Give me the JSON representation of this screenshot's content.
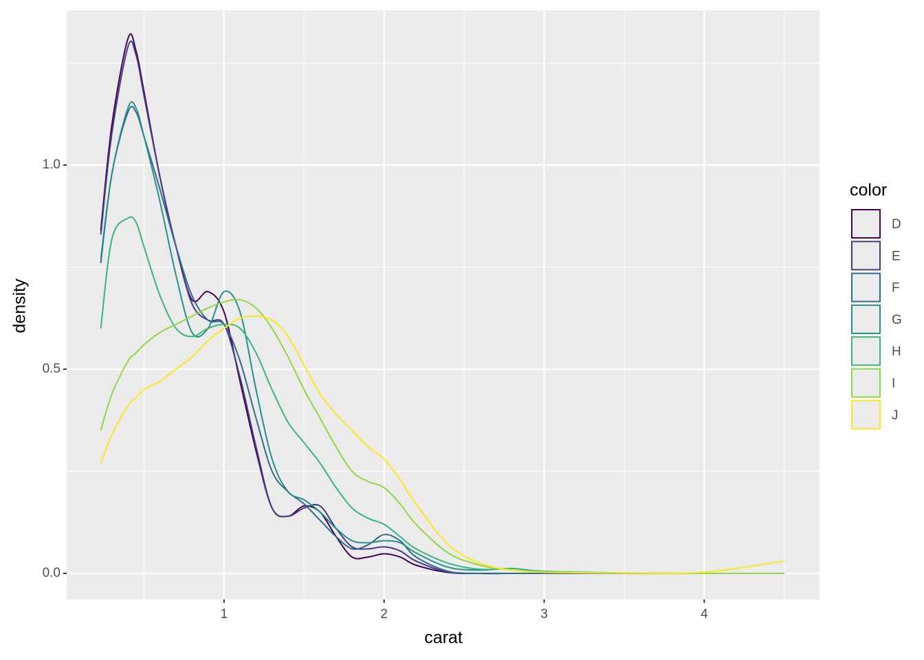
{
  "chart_data": {
    "type": "density",
    "x_label": "carat",
    "y_label": "density",
    "legend_title": "color",
    "xlim": [
      0.017,
      4.72
    ],
    "ylim": [
      -0.064,
      1.379
    ],
    "xticks": [
      1,
      2,
      3,
      4
    ],
    "yticks": [
      {
        "value": 0,
        "label": "0.0"
      },
      0.5,
      {
        "value": 1,
        "label": "1.0"
      }
    ],
    "xminor": [
      0.5,
      1.5,
      2.5,
      3.5,
      4.5
    ],
    "yminor": [
      0.25,
      0.75,
      1.25
    ],
    "grid": true,
    "legend": "right",
    "x": [
      0.23,
      0.3,
      0.4,
      0.45,
      0.5,
      0.6,
      0.7,
      0.8,
      0.9,
      1.0,
      1.1,
      1.2,
      1.3,
      1.4,
      1.5,
      1.6,
      1.7,
      1.8,
      1.9,
      2.0,
      2.1,
      2.2,
      2.4,
      2.6,
      2.8,
      3.0,
      3.5,
      4.0,
      4.5
    ],
    "series": [
      {
        "name": "D",
        "color": "#440154",
        "values": [
          0.84,
          1.1,
          1.31,
          1.28,
          1.18,
          0.97,
          0.8,
          0.67,
          0.69,
          0.64,
          0.47,
          0.3,
          0.16,
          0.14,
          0.165,
          0.15,
          0.09,
          0.04,
          0.04,
          0.048,
          0.04,
          0.02,
          0.002,
          0,
          0,
          0,
          0,
          0,
          0
        ]
      },
      {
        "name": "E",
        "color": "#443A83",
        "values": [
          0.83,
          1.08,
          1.29,
          1.27,
          1.17,
          0.97,
          0.8,
          0.66,
          0.62,
          0.61,
          0.48,
          0.31,
          0.16,
          0.14,
          0.16,
          0.165,
          0.11,
          0.065,
          0.06,
          0.065,
          0.055,
          0.03,
          0.003,
          0,
          0,
          0,
          0,
          0,
          0
        ]
      },
      {
        "name": "F",
        "color": "#31688E",
        "values": [
          0.76,
          0.98,
          1.13,
          1.13,
          1.07,
          0.94,
          0.8,
          0.68,
          0.62,
          0.61,
          0.52,
          0.38,
          0.25,
          0.2,
          0.17,
          0.13,
          0.09,
          0.06,
          0.07,
          0.095,
          0.08,
          0.04,
          0.005,
          0,
          0,
          0,
          0,
          0,
          0
        ]
      },
      {
        "name": "G",
        "color": "#21908C",
        "values": [
          0.77,
          0.98,
          1.14,
          1.14,
          1.07,
          0.91,
          0.73,
          0.59,
          0.6,
          0.69,
          0.64,
          0.45,
          0.28,
          0.2,
          0.18,
          0.15,
          0.11,
          0.08,
          0.075,
          0.08,
          0.075,
          0.05,
          0.015,
          0.008,
          0.012,
          0.004,
          0,
          0,
          0
        ]
      },
      {
        "name": "H",
        "color": "#35B779",
        "values": [
          0.6,
          0.82,
          0.87,
          0.86,
          0.8,
          0.68,
          0.6,
          0.58,
          0.6,
          0.61,
          0.6,
          0.54,
          0.45,
          0.37,
          0.32,
          0.27,
          0.21,
          0.16,
          0.135,
          0.12,
          0.09,
          0.06,
          0.025,
          0.01,
          0.012,
          0.005,
          0.001,
          0,
          0
        ]
      },
      {
        "name": "I",
        "color": "#8FD744",
        "values": [
          0.35,
          0.44,
          0.52,
          0.54,
          0.56,
          0.59,
          0.61,
          0.63,
          0.65,
          0.665,
          0.67,
          0.65,
          0.6,
          0.53,
          0.45,
          0.38,
          0.31,
          0.25,
          0.225,
          0.21,
          0.17,
          0.12,
          0.05,
          0.02,
          0.008,
          0.003,
          0.0005,
          0,
          0
        ]
      },
      {
        "name": "J",
        "color": "#FDE725",
        "values": [
          0.27,
          0.34,
          0.41,
          0.43,
          0.45,
          0.47,
          0.5,
          0.53,
          0.57,
          0.6,
          0.625,
          0.63,
          0.62,
          0.58,
          0.51,
          0.44,
          0.39,
          0.35,
          0.31,
          0.28,
          0.23,
          0.17,
          0.07,
          0.025,
          0.008,
          0.003,
          0.001,
          0.003,
          0.03
        ]
      }
    ]
  }
}
